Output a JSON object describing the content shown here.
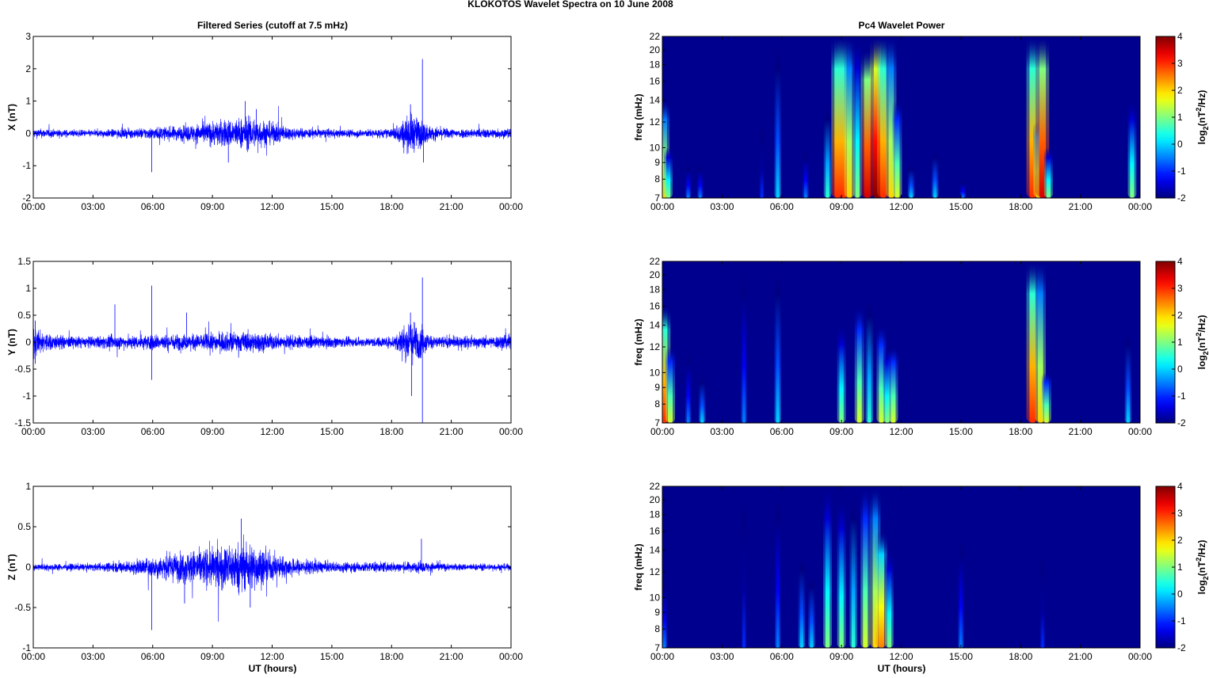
{
  "title": "KLOKOTOS Wavelet Spectra on 10 June      2008",
  "left_title": "Filtered Series (cutoff at 7.5 mHz)",
  "right_title": "Pc4 Wavelet Power",
  "xlabel": "UT (hours)",
  "colors": {
    "series": "#0000ff",
    "spectrum_background": "#00008f"
  },
  "chart_data": [
    {
      "type": "line",
      "name": "X filtered series",
      "ylabel": "X (nT)",
      "xlim": [
        0,
        24
      ],
      "ylim": [
        -2,
        3
      ],
      "yticks": [
        "-2",
        "-1",
        "0",
        "1",
        "2",
        "3"
      ],
      "ytick_values": [
        -2,
        -1,
        0,
        1,
        2,
        3
      ],
      "xticks": [
        "00:00",
        "03:00",
        "06:00",
        "09:00",
        "12:00",
        "15:00",
        "18:00",
        "21:00",
        "00:00"
      ],
      "envelope_hourly_nT": [
        0.07,
        0.06,
        0.05,
        0.05,
        0.06,
        0.07,
        0.09,
        0.1,
        0.13,
        0.18,
        0.22,
        0.24,
        0.16,
        0.09,
        0.07,
        0.06,
        0.06,
        0.06,
        0.07,
        0.3,
        0.1,
        0.07,
        0.07,
        0.07,
        0.08
      ],
      "spikes": [
        [
          5.95,
          -1.2
        ],
        [
          10.65,
          1.0
        ],
        [
          18.95,
          0.9
        ],
        [
          19.55,
          2.3
        ],
        [
          19.6,
          -0.9
        ],
        [
          11.2,
          0.75
        ],
        [
          9.8,
          -0.9
        ]
      ]
    },
    {
      "type": "line",
      "name": "Y filtered series",
      "ylabel": "Y (nT)",
      "xlim": [
        0,
        24
      ],
      "ylim": [
        -1.5,
        1.5
      ],
      "yticks": [
        "-1.5",
        "-1",
        "-0.5",
        "0",
        "0.5",
        "1",
        "1.5"
      ],
      "ytick_values": [
        -1.5,
        -1,
        -0.5,
        0,
        0.5,
        1,
        1.5
      ],
      "xticks": [
        "00:00",
        "03:00",
        "06:00",
        "09:00",
        "12:00",
        "15:00",
        "18:00",
        "21:00",
        "00:00"
      ],
      "envelope_hourly_nT": [
        0.12,
        0.07,
        0.05,
        0.05,
        0.06,
        0.06,
        0.07,
        0.07,
        0.07,
        0.08,
        0.09,
        0.09,
        0.07,
        0.06,
        0.05,
        0.05,
        0.04,
        0.04,
        0.05,
        0.2,
        0.06,
        0.05,
        0.05,
        0.05,
        0.08
      ],
      "spikes": [
        [
          0.1,
          0.4
        ],
        [
          0.1,
          -0.4
        ],
        [
          4.1,
          0.7
        ],
        [
          5.95,
          1.05
        ],
        [
          5.95,
          -0.7
        ],
        [
          7.7,
          0.55
        ],
        [
          19.55,
          1.2
        ],
        [
          19.55,
          -1.5
        ],
        [
          19.0,
          -1.0
        ],
        [
          18.95,
          0.55
        ]
      ]
    },
    {
      "type": "line",
      "name": "Z filtered series",
      "ylabel": "Z (nT)",
      "xlim": [
        0,
        24
      ],
      "ylim": [
        -1,
        1
      ],
      "yticks": [
        "-1",
        "-0.5",
        "0",
        "0.5",
        "1"
      ],
      "ytick_values": [
        -1,
        -0.5,
        0,
        0.5,
        1
      ],
      "xticks": [
        "00:00",
        "03:00",
        "06:00",
        "09:00",
        "12:00",
        "15:00",
        "18:00",
        "21:00",
        "00:00"
      ],
      "envelope_hourly_nT": [
        0.02,
        0.02,
        0.02,
        0.02,
        0.03,
        0.04,
        0.06,
        0.08,
        0.1,
        0.12,
        0.14,
        0.14,
        0.08,
        0.05,
        0.04,
        0.03,
        0.03,
        0.03,
        0.03,
        0.03,
        0.03,
        0.02,
        0.02,
        0.02,
        0.02
      ],
      "spikes": [
        [
          5.95,
          -0.78
        ],
        [
          10.45,
          0.6
        ],
        [
          10.9,
          -0.5
        ],
        [
          19.5,
          0.35
        ],
        [
          7.6,
          -0.45
        ]
      ]
    },
    {
      "type": "heatmap",
      "name": "X Pc4 wavelet power",
      "ylabel": "freq (mHz)",
      "xlim": [
        0,
        24
      ],
      "ylim": [
        7,
        22
      ],
      "yscale": "log",
      "yticks": [
        "7",
        "8",
        "9",
        "10",
        "12",
        "14",
        "16",
        "18",
        "20",
        "22"
      ],
      "ytick_values": [
        7,
        8,
        9,
        10,
        12,
        14,
        16,
        18,
        20,
        22
      ],
      "xticks": [
        "00:00",
        "03:00",
        "06:00",
        "09:00",
        "12:00",
        "15:00",
        "18:00",
        "21:00",
        "00:00"
      ],
      "colorbar": {
        "range": [
          -2,
          4
        ],
        "ticks": [
          "-2",
          "-1",
          "0",
          "1",
          "2",
          "3",
          "4"
        ],
        "label_parts": [
          "log",
          "2",
          "(nT",
          "2",
          "/Hz)"
        ]
      },
      "bursts_hour_power_fmax": [
        [
          0.1,
          2,
          14
        ],
        [
          0.3,
          1,
          10
        ],
        [
          1.3,
          -0.5,
          9
        ],
        [
          1.9,
          -0.5,
          9
        ],
        [
          5.0,
          -1,
          12
        ],
        [
          5.8,
          0,
          22
        ],
        [
          7.2,
          -0.5,
          10
        ],
        [
          8.3,
          0.5,
          14
        ],
        [
          8.8,
          3,
          22
        ],
        [
          9.1,
          3,
          22
        ],
        [
          9.4,
          2,
          22
        ],
        [
          9.8,
          1,
          22
        ],
        [
          10.3,
          3.5,
          20
        ],
        [
          10.8,
          4,
          22
        ],
        [
          11.1,
          3,
          22
        ],
        [
          11.5,
          2,
          22
        ],
        [
          11.8,
          1.5,
          14
        ],
        [
          12.5,
          0,
          9
        ],
        [
          13.7,
          0,
          10
        ],
        [
          15.1,
          -0.5,
          8
        ],
        [
          18.6,
          3,
          22
        ],
        [
          18.9,
          2,
          12
        ],
        [
          19.1,
          3.5,
          22
        ],
        [
          19.4,
          1,
          10
        ],
        [
          23.6,
          1,
          14
        ]
      ]
    },
    {
      "type": "heatmap",
      "name": "Y Pc4 wavelet power",
      "ylabel": "freq (mHz)",
      "xlim": [
        0,
        24
      ],
      "ylim": [
        7,
        22
      ],
      "yscale": "log",
      "yticks": [
        "7",
        "8",
        "9",
        "10",
        "12",
        "14",
        "16",
        "18",
        "20",
        "22"
      ],
      "ytick_values": [
        7,
        8,
        9,
        10,
        12,
        14,
        16,
        18,
        20,
        22
      ],
      "xticks": [
        "00:00",
        "03:00",
        "06:00",
        "09:00",
        "12:00",
        "15:00",
        "18:00",
        "21:00",
        "00:00"
      ],
      "colorbar": {
        "range": [
          -2,
          4
        ],
        "ticks": [
          "-2",
          "-1",
          "0",
          "1",
          "2",
          "3",
          "4"
        ],
        "label_parts": [
          "log",
          "2",
          "(nT",
          "2",
          "/Hz)"
        ]
      },
      "bursts_hour_power_fmax": [
        [
          0.1,
          3,
          16
        ],
        [
          0.4,
          1.5,
          12
        ],
        [
          1.3,
          -0.5,
          12
        ],
        [
          2.0,
          0,
          10
        ],
        [
          4.1,
          -0.5,
          22
        ],
        [
          5.8,
          0,
          22
        ],
        [
          9.0,
          1,
          14
        ],
        [
          9.9,
          1.5,
          16
        ],
        [
          10.4,
          0.5,
          18
        ],
        [
          11.0,
          1.5,
          14
        ],
        [
          11.3,
          1,
          12
        ],
        [
          11.6,
          1.5,
          12
        ],
        [
          18.6,
          3,
          22
        ],
        [
          19.0,
          2,
          22
        ],
        [
          19.3,
          1.5,
          10
        ],
        [
          23.4,
          0,
          14
        ]
      ]
    },
    {
      "type": "heatmap",
      "name": "Z Pc4 wavelet power",
      "ylabel": "freq (mHz)",
      "xlim": [
        0,
        24
      ],
      "ylim": [
        7,
        22
      ],
      "yscale": "log",
      "yticks": [
        "7",
        "8",
        "9",
        "10",
        "12",
        "14",
        "16",
        "18",
        "20",
        "22"
      ],
      "ytick_values": [
        7,
        8,
        9,
        10,
        12,
        14,
        16,
        18,
        20,
        22
      ],
      "xticks": [
        "00:00",
        "03:00",
        "06:00",
        "09:00",
        "12:00",
        "15:00",
        "18:00",
        "21:00",
        "00:00"
      ],
      "colorbar": {
        "range": [
          -2,
          4
        ],
        "ticks": [
          "-2",
          "-1",
          "0",
          "1",
          "2",
          "3",
          "4"
        ],
        "label_parts": [
          "log",
          "2",
          "(nT",
          "2",
          "/Hz)"
        ]
      },
      "bursts_hour_power_fmax": [
        [
          0.1,
          -0.5,
          12
        ],
        [
          4.1,
          -1,
          22
        ],
        [
          5.8,
          -0.5,
          22
        ],
        [
          7.0,
          0,
          14
        ],
        [
          7.5,
          0,
          12
        ],
        [
          8.3,
          1,
          22
        ],
        [
          9.0,
          1,
          20
        ],
        [
          9.6,
          0.5,
          22
        ],
        [
          10.2,
          1.5,
          22
        ],
        [
          10.7,
          2,
          22
        ],
        [
          11.0,
          2.5,
          16
        ],
        [
          11.4,
          1,
          14
        ],
        [
          15.0,
          -0.5,
          16
        ],
        [
          19.1,
          -1,
          14
        ]
      ]
    }
  ]
}
